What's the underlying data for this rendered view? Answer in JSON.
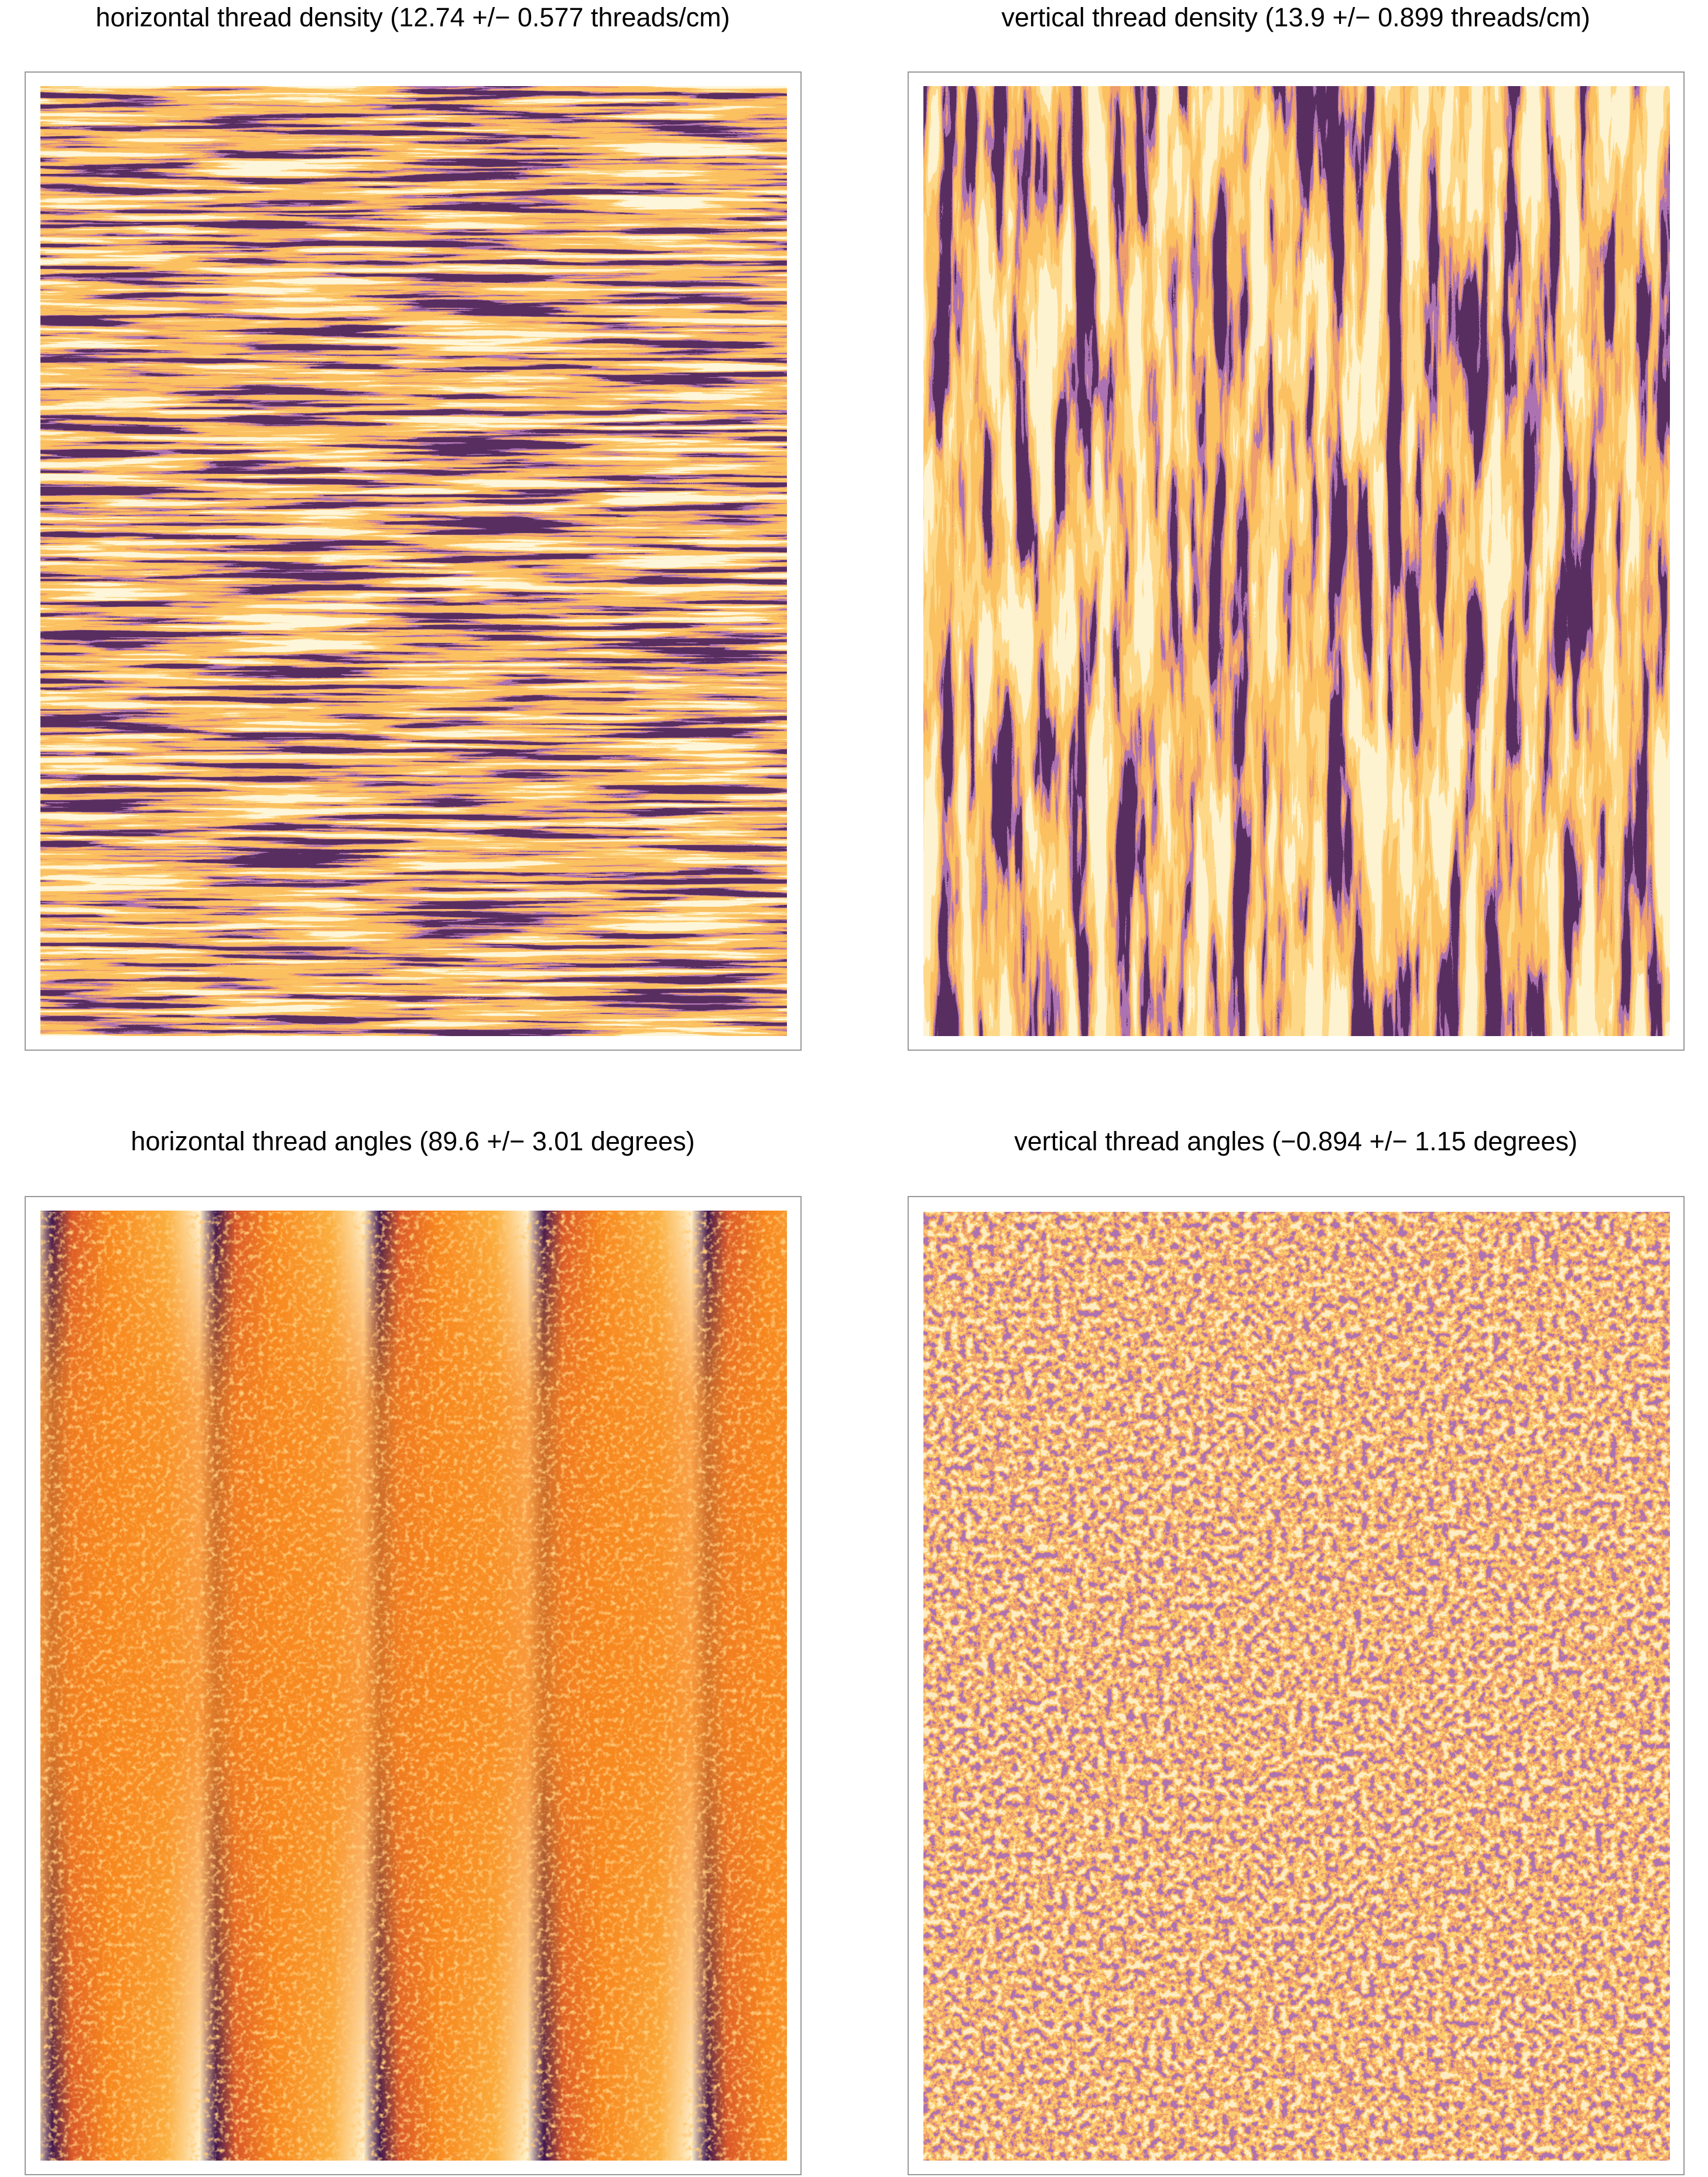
{
  "panels": [
    {
      "title": "horizontal thread density (12.74 +/− 0.577 threads/cm)"
    },
    {
      "title": "vertical thread density (13.9 +/− 0.899 threads/cm)"
    },
    {
      "title": "horizontal thread angles (89.6 +/− 3.01 degrees)"
    },
    {
      "title": "vertical thread angles (−0.894 +/− 1.15 degrees)"
    }
  ]
}
